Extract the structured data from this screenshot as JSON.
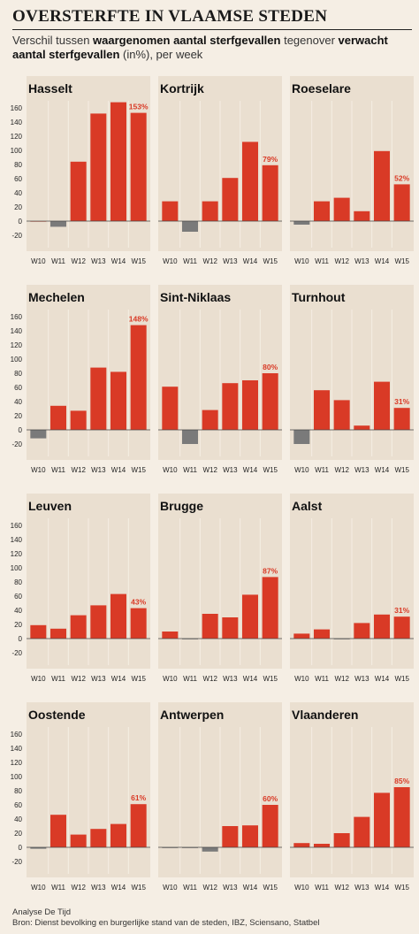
{
  "title": "OVERSTERFTE IN VLAAMSE STEDEN",
  "subtitle": {
    "part1": "Verschil tussen ",
    "bold1": "waargenomen aantal sterfgevallen",
    "part2": " tegenover ",
    "bold2": "verwacht aantal sterfgevallen",
    "part3": " (in%), per week"
  },
  "footer": {
    "line1": "Analyse De Tijd",
    "line2": "Bron: Dienst bevolking en burgerlijke stand van de steden, IBZ, Sciensano, Statbel"
  },
  "colors": {
    "positive": "#d93a26",
    "negative": "#7a7a7a",
    "panel": "#eadfd0",
    "zero": "#444444"
  },
  "chart_data": {
    "type": "bar",
    "categories": [
      "W10",
      "W11",
      "W12",
      "W13",
      "W14",
      "W15"
    ],
    "ylim": [
      -20,
      160
    ],
    "yticks": [
      160,
      140,
      120,
      100,
      80,
      60,
      40,
      20,
      0,
      -20
    ],
    "panels": [
      {
        "city": "Hasselt",
        "values": [
          0,
          -8,
          84,
          152,
          168,
          153
        ],
        "label": "153%"
      },
      {
        "city": "Kortrijk",
        "values": [
          28,
          -15,
          28,
          61,
          112,
          79
        ],
        "label": "79%"
      },
      {
        "city": "Roeselare",
        "values": [
          -5,
          28,
          33,
          14,
          99,
          52
        ],
        "label": "52%"
      },
      {
        "city": "Mechelen",
        "values": [
          -12,
          34,
          27,
          88,
          82,
          148
        ],
        "label": "148%"
      },
      {
        "city": "Sint-Niklaas",
        "values": [
          61,
          -20,
          28,
          66,
          70,
          80
        ],
        "label": "80%"
      },
      {
        "city": "Turnhout",
        "values": [
          -20,
          56,
          42,
          6,
          68,
          31
        ],
        "label": "31%"
      },
      {
        "city": "Leuven",
        "values": [
          19,
          14,
          33,
          47,
          63,
          43
        ],
        "label": "43%"
      },
      {
        "city": "Brugge",
        "values": [
          10,
          -1,
          35,
          30,
          62,
          87
        ],
        "label": "87%"
      },
      {
        "city": "Aalst",
        "values": [
          7,
          13,
          -1,
          22,
          34,
          31
        ],
        "label": "31%"
      },
      {
        "city": "Oostende",
        "values": [
          -2,
          46,
          18,
          26,
          33,
          61
        ],
        "label": "61%"
      },
      {
        "city": "Antwerpen",
        "values": [
          -1,
          -1,
          -6,
          30,
          31,
          60
        ],
        "label": "60%"
      },
      {
        "city": "Vlaanderen",
        "values": [
          6,
          5,
          20,
          43,
          77,
          85
        ],
        "label": "85%"
      }
    ]
  }
}
